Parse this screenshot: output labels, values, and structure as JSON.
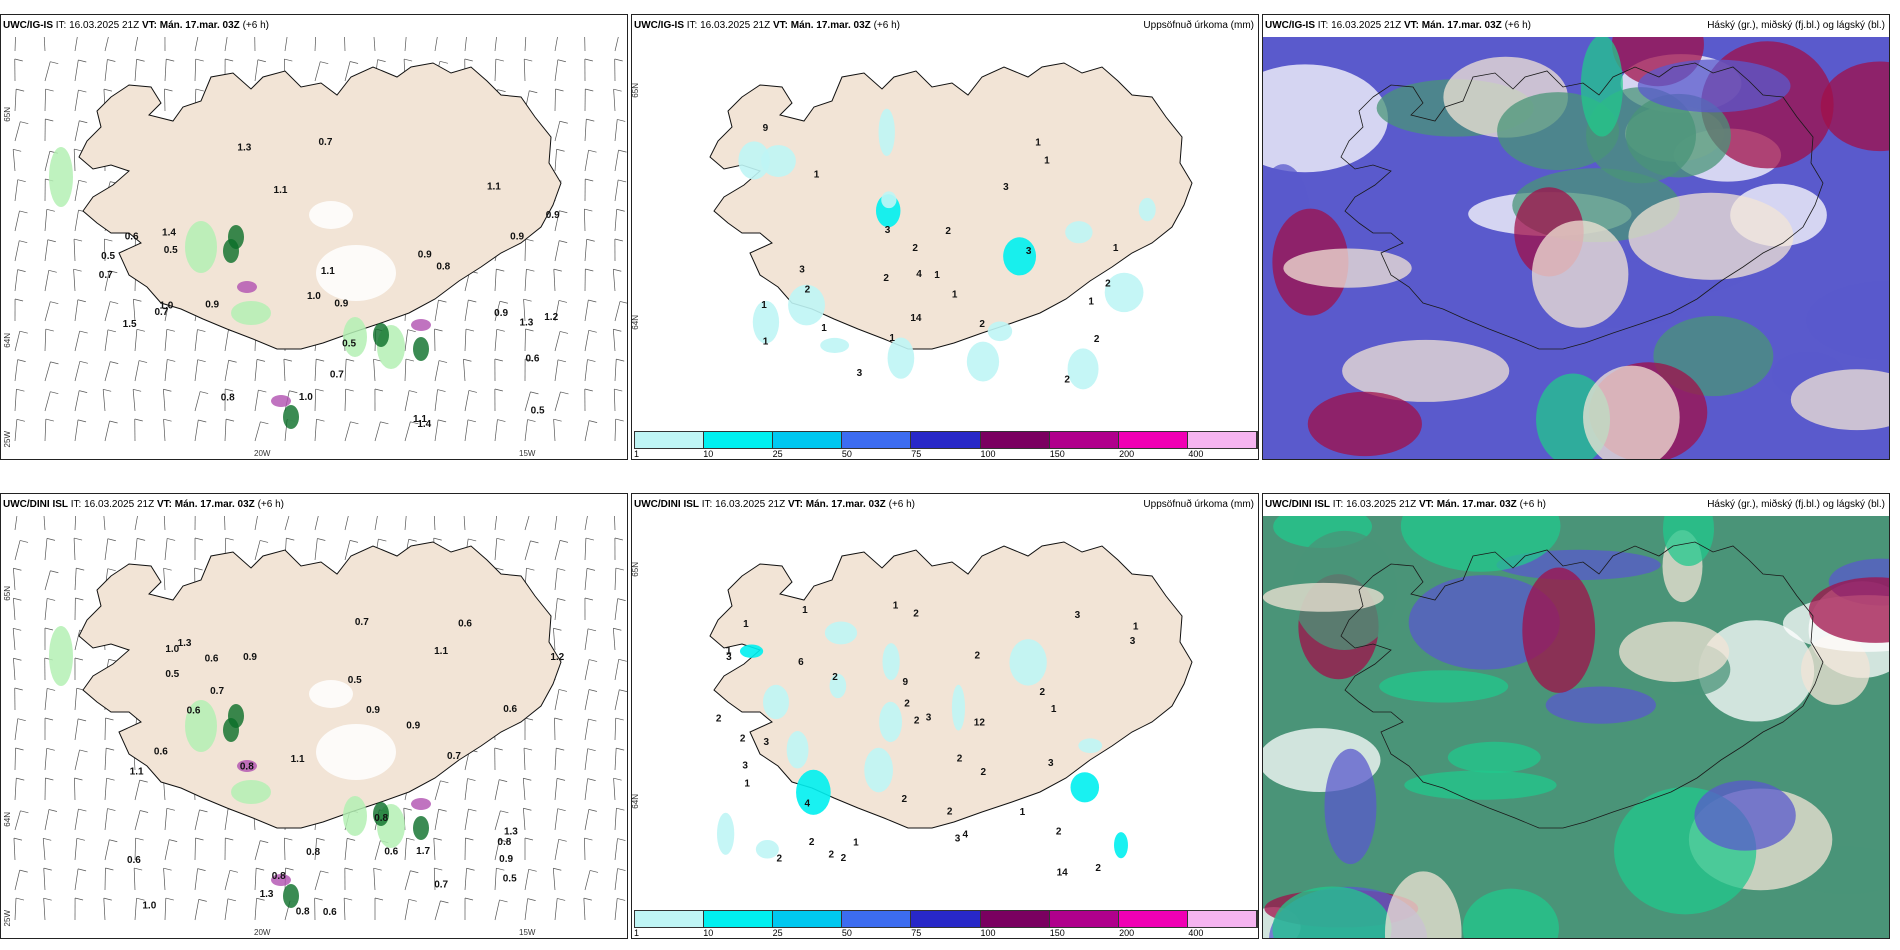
{
  "rows": [
    {
      "model": "UWC/IG-IS",
      "wind_labels": [
        "0.6",
        "0.9",
        "1.1",
        "0.9",
        "1.1",
        "1.1",
        "0.9",
        "1.0",
        "0.9",
        "1.0",
        "0.7",
        "0.9",
        "0.8",
        "1.4",
        "0.7",
        "0.6",
        "1.5",
        "1.3",
        "0.5",
        "0.5",
        "1.0",
        "1.1",
        "1.3",
        "0.9",
        "1.4",
        "1.2",
        "0.7",
        "0.8",
        "0.5",
        "0.7",
        "0.5"
      ],
      "precip_labels": [
        "2",
        "1",
        "2",
        "2",
        "3",
        "2",
        "1",
        "3",
        "9",
        "1",
        "3",
        "4",
        "14",
        "1",
        "1",
        "3",
        "2",
        "2",
        "1",
        "3",
        "2",
        "2",
        "1",
        "1",
        "1",
        "1",
        "1"
      ],
      "lat_labels": [
        "65N",
        "64N"
      ],
      "lon_labels": [
        "25W",
        "20W",
        "15W"
      ]
    },
    {
      "model": "UWC/DINI ISL",
      "wind_labels": [
        "0.6",
        "0.6",
        "0.6",
        "0.8",
        "0.5",
        "0.5",
        "0.7",
        "0.6",
        "0.6",
        "0.9",
        "0.6",
        "1.0",
        "0.9",
        "0.7",
        "1.1",
        "0.8",
        "1.1",
        "0.7",
        "0.8",
        "1.3",
        "0.8",
        "0.9",
        "1.0",
        "0.8",
        "0.9",
        "1.3",
        "1.3",
        "0.6",
        "0.6",
        "0.8",
        "1.2",
        "1.1",
        "1.7",
        "0.7",
        "0.5"
      ],
      "precip_labels": [
        "2",
        "2",
        "2",
        "1",
        "1",
        "2",
        "3",
        "2",
        "9",
        "3",
        "3",
        "3",
        "1",
        "3",
        "6",
        "4",
        "4",
        "2",
        "2",
        "2",
        "1",
        "2",
        "3",
        "2",
        "2",
        "2",
        "2",
        "1",
        "2",
        "3",
        "3",
        "14",
        "12",
        "2",
        "2",
        "1",
        "1",
        "1",
        "1",
        "2",
        "2"
      ],
      "lat_labels": [
        "65N",
        "64N"
      ],
      "lon_labels": [
        "25W",
        "20W",
        "15W"
      ]
    }
  ],
  "header": {
    "it_label": "IT:",
    "it_value": "16.03.2025 21Z",
    "vt_label": "VT: Mán. 17.mar. 03Z",
    "lead": "(+6 h)",
    "precip_title": "Uppsöfnuð úrkoma (mm)",
    "cloud_title": "Háský (gr.), miðský (fj.bl.) og lágský (bl.)"
  },
  "colorbar": {
    "ticks": [
      "1",
      "10",
      "25",
      "50",
      "75",
      "100",
      "150",
      "200",
      "400"
    ],
    "colors": [
      "#bff5f5",
      "#00f0f0",
      "#00c8f0",
      "#3c6cf0",
      "#2828c8",
      "#7a0060",
      "#b0008c",
      "#f000b4",
      "#f5b4f0"
    ]
  },
  "colors": {
    "land": "#f2e4d6",
    "coast": "#111111",
    "cloud_high": "#4a9478",
    "cloud_mid": "#22c88c",
    "cloud_low": "#5a5acc",
    "cloud_precip": "#a0104a",
    "green_light": "#b4f0b4",
    "green_dark": "#0a6e28",
    "snow": "#ffffff",
    "magenta": "#b050b0"
  }
}
